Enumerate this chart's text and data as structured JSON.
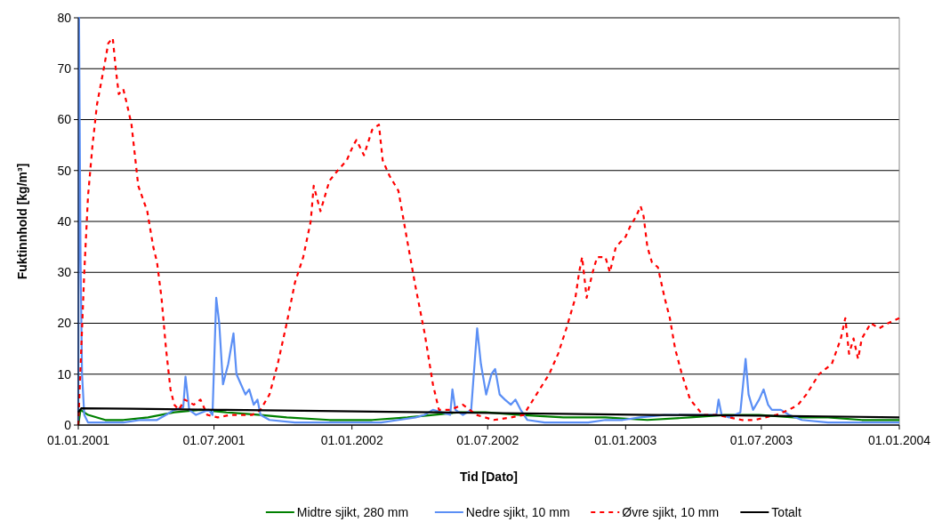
{
  "chart_data": {
    "type": "line",
    "xlabel": "Tid [Dato]",
    "ylabel": "Fuktinnhold [kg/m³]",
    "legend": "bottom",
    "grid": "y",
    "xlim": [
      "2001-01-01",
      "2004-01-01"
    ],
    "ylim": [
      0,
      80
    ],
    "yticks": [
      0,
      10,
      20,
      30,
      40,
      50,
      60,
      70,
      80
    ],
    "xticks": [
      {
        "value": "2001-01-01",
        "label": "01.01.2001"
      },
      {
        "value": "2001-07-01",
        "label": "01.07.2001"
      },
      {
        "value": "2002-01-01",
        "label": "01.01.2002"
      },
      {
        "value": "2002-07-01",
        "label": "01.07.2002"
      },
      {
        "value": "2003-01-01",
        "label": "01.01.2003"
      },
      {
        "value": "2003-07-01",
        "label": "01.07.2003"
      },
      {
        "value": "2004-01-01",
        "label": "01.01.2004"
      }
    ],
    "series": [
      {
        "name": "Midtre sjikt, 280 mm",
        "color": "#008000",
        "line_style": "solid",
        "x": [
          "2001-01-01",
          "2001-01-04",
          "2001-01-14",
          "2001-02-06",
          "2001-03-02",
          "2001-04-04",
          "2001-05-09",
          "2001-06-13",
          "2001-07-17",
          "2001-09-01",
          "2001-10-06",
          "2001-12-02",
          "2002-01-28",
          "2002-03-16",
          "2002-04-19",
          "2002-05-24",
          "2002-06-28",
          "2002-08-14",
          "2002-10-10",
          "2002-12-05",
          "2003-01-30",
          "2003-03-28",
          "2003-05-13",
          "2003-06-28",
          "2003-08-13",
          "2003-09-28",
          "2003-11-12",
          "2004-01-01"
        ],
        "values": [
          0,
          3,
          2,
          1,
          1,
          1.5,
          2.5,
          3,
          2.5,
          2,
          1.5,
          1,
          1,
          1.5,
          2,
          2.5,
          2.5,
          2,
          1.5,
          1.5,
          1,
          1.5,
          2,
          2,
          1.5,
          1.5,
          1,
          1
        ]
      },
      {
        "name": "Nedre sjikt, 10 mm",
        "color": "#5b8ff5",
        "line_style": "solid",
        "x": [
          "2001-01-01",
          "2001-01-02",
          "2001-01-04",
          "2001-01-06",
          "2001-01-09",
          "2001-01-14",
          "2001-03-02",
          "2001-03-25",
          "2001-04-16",
          "2001-04-28",
          "2001-05-09",
          "2001-05-21",
          "2001-05-24",
          "2001-05-29",
          "2001-06-07",
          "2001-06-24",
          "2001-06-29",
          "2001-07-04",
          "2001-07-08",
          "2001-07-13",
          "2001-07-20",
          "2001-07-27",
          "2001-07-31",
          "2001-08-06",
          "2001-08-12",
          "2001-08-17",
          "2001-08-23",
          "2001-08-28",
          "2001-09-01",
          "2001-09-13",
          "2001-10-17",
          "2001-12-13",
          "2002-02-09",
          "2002-03-04",
          "2002-03-27",
          "2002-04-08",
          "2002-04-19",
          "2002-05-12",
          "2002-05-15",
          "2002-05-19",
          "2002-05-29",
          "2002-06-09",
          "2002-06-17",
          "2002-06-22",
          "2002-06-29",
          "2002-07-06",
          "2002-07-11",
          "2002-07-17",
          "2002-07-24",
          "2002-08-01",
          "2002-08-07",
          "2002-08-14",
          "2002-08-23",
          "2002-09-15",
          "2002-11-12",
          "2002-12-05",
          "2002-12-28",
          "2003-01-20",
          "2003-02-22",
          "2003-03-28",
          "2003-05-02",
          "2003-05-05",
          "2003-05-09",
          "2003-05-19",
          "2003-06-03",
          "2003-06-10",
          "2003-06-14",
          "2003-06-20",
          "2003-06-28",
          "2003-07-04",
          "2003-07-10",
          "2003-07-15",
          "2003-07-27",
          "2003-08-07",
          "2003-08-24",
          "2003-09-28",
          "2004-01-01"
        ],
        "values": [
          0,
          80,
          33,
          10,
          2,
          0.5,
          0.5,
          1,
          1,
          2,
          3,
          3.5,
          9.5,
          3,
          2,
          3,
          2,
          25,
          20,
          8,
          12,
          18,
          10,
          8,
          6,
          7,
          4,
          5,
          2,
          1,
          0.5,
          0.5,
          0.5,
          1,
          1.5,
          2,
          3,
          2,
          7,
          3,
          2,
          3,
          19,
          12,
          6,
          10,
          11,
          6,
          5,
          4,
          5,
          3,
          1,
          0.5,
          0.5,
          1,
          1,
          1.5,
          2,
          2,
          2,
          5,
          2,
          1.5,
          2.5,
          13,
          6,
          3,
          5,
          7,
          4,
          3,
          3,
          2,
          1,
          0.5,
          0.5
        ]
      },
      {
        "name": "Øvre sjikt, 10 mm",
        "color": "#ff0000",
        "line_style": "dashed",
        "x": [
          "2001-01-01",
          "2001-01-05",
          "2001-01-09",
          "2001-01-14",
          "2001-01-20",
          "2001-01-26",
          "2001-02-04",
          "2001-02-10",
          "2001-02-16",
          "2001-02-20",
          "2001-02-24",
          "2001-03-02",
          "2001-03-07",
          "2001-03-13",
          "2001-03-22",
          "2001-04-03",
          "2001-04-11",
          "2001-04-16",
          "2001-04-22",
          "2001-04-28",
          "2001-05-04",
          "2001-05-09",
          "2001-05-15",
          "2001-05-23",
          "2001-06-04",
          "2001-06-13",
          "2001-06-22",
          "2001-07-06",
          "2001-07-23",
          "2001-08-21",
          "2001-09-01",
          "2001-09-13",
          "2001-09-24",
          "2001-10-06",
          "2001-10-17",
          "2001-10-28",
          "2001-11-07",
          "2001-11-11",
          "2001-11-20",
          "2001-12-02",
          "2001-12-13",
          "2001-12-25",
          "2002-01-03",
          "2002-01-07",
          "2002-01-17",
          "2002-01-28",
          "2002-02-06",
          "2002-02-11",
          "2002-02-20",
          "2002-03-04",
          "2002-03-10",
          "2002-03-16",
          "2002-03-27",
          "2002-04-08",
          "2002-04-19",
          "2002-04-27",
          "2002-05-12",
          "2002-05-29",
          "2002-06-16",
          "2002-07-09",
          "2002-08-01",
          "2002-08-18",
          "2002-09-04",
          "2002-09-21",
          "2002-10-03",
          "2002-10-14",
          "2002-10-26",
          "2002-10-31",
          "2002-11-04",
          "2002-11-10",
          "2002-11-18",
          "2002-11-24",
          "2002-12-05",
          "2002-12-11",
          "2002-12-19",
          "2003-01-01",
          "2003-01-07",
          "2003-01-15",
          "2003-01-21",
          "2003-01-25",
          "2003-01-30",
          "2003-02-05",
          "2003-02-13",
          "2003-02-22",
          "2003-03-01",
          "2003-03-08",
          "2003-03-17",
          "2003-03-28",
          "2003-04-14",
          "2003-05-02",
          "2003-05-19",
          "2003-06-05",
          "2003-06-22",
          "2003-07-21",
          "2003-08-07",
          "2003-08-19",
          "2003-08-30",
          "2003-09-16",
          "2003-10-03",
          "2003-10-15",
          "2003-10-21",
          "2003-10-26",
          "2003-11-01",
          "2003-11-07",
          "2003-11-12",
          "2003-11-24",
          "2003-12-05",
          "2003-12-17",
          "2004-01-01"
        ],
        "values": [
          0,
          15,
          30,
          45,
          55,
          63,
          70,
          75,
          76,
          70,
          65,
          66,
          63,
          59,
          47,
          42,
          35,
          32,
          25,
          15,
          7,
          4,
          3,
          5,
          4,
          5,
          2,
          1.5,
          2,
          2,
          3,
          6,
          12,
          20,
          28,
          33,
          40,
          47,
          42,
          48,
          50,
          52,
          55,
          56,
          53,
          58,
          59,
          52,
          49,
          46,
          41,
          36,
          27,
          18,
          8,
          3,
          3,
          4,
          2,
          1,
          1.5,
          2,
          6,
          10,
          14,
          19,
          25,
          30,
          33,
          25,
          30,
          33,
          33,
          30,
          35,
          37,
          39,
          41,
          43,
          41,
          35,
          32,
          31,
          25,
          21,
          15,
          10,
          5,
          2,
          2,
          1.5,
          1,
          1,
          2,
          3,
          4,
          6,
          10,
          12,
          17,
          21,
          14,
          17,
          13,
          17,
          20,
          19,
          20,
          21
        ]
      },
      {
        "name": "Totalt",
        "color": "#000000",
        "line_style": "solid",
        "x": [
          "2001-01-01",
          "2001-01-05",
          "2001-03-13",
          "2001-07-06",
          "2001-10-28",
          "2002-02-20",
          "2002-06-16",
          "2002-10-10",
          "2003-02-05",
          "2003-05-30",
          "2003-09-22",
          "2004-01-01"
        ],
        "values": [
          2.5,
          3.3,
          3.2,
          3,
          2.8,
          2.6,
          2.4,
          2.2,
          2,
          1.9,
          1.7,
          1.5
        ]
      }
    ]
  }
}
